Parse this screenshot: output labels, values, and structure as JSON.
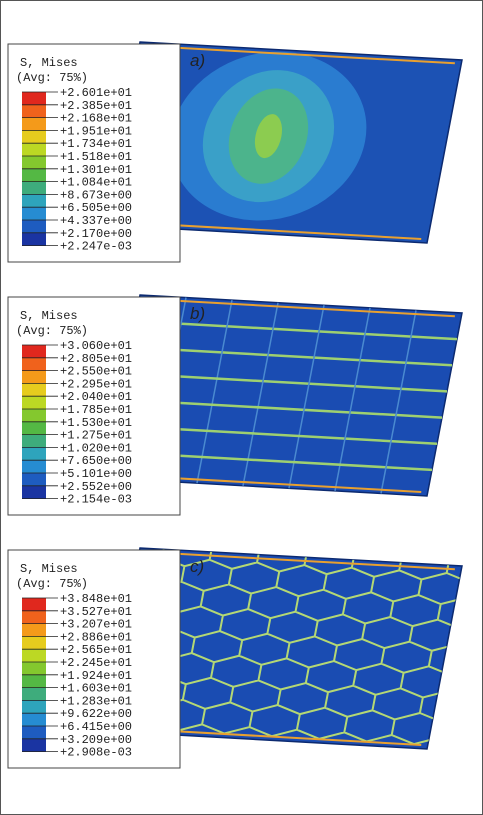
{
  "panels": [
    {
      "label": "a)",
      "legend": {
        "title": "S, Mises",
        "subtitle": "(Avg: 75%)",
        "values": [
          "+2.601e+01",
          "+2.385e+01",
          "+2.168e+01",
          "+1.951e+01",
          "+1.734e+01",
          "+1.518e+01",
          "+1.301e+01",
          "+1.084e+01",
          "+8.673e+00",
          "+6.505e+00",
          "+4.337e+00",
          "+2.170e+00",
          "+2.247e-03"
        ]
      }
    },
    {
      "label": "b)",
      "legend": {
        "title": "S, Mises",
        "subtitle": "(Avg: 75%)",
        "values": [
          "+3.060e+01",
          "+2.805e+01",
          "+2.550e+01",
          "+2.295e+01",
          "+2.040e+01",
          "+1.785e+01",
          "+1.530e+01",
          "+1.275e+01",
          "+1.020e+01",
          "+7.650e+00",
          "+5.101e+00",
          "+2.552e+00",
          "+2.154e-03"
        ]
      }
    },
    {
      "label": "c)",
      "legend": {
        "title": "S, Mises",
        "subtitle": "(Avg: 75%)",
        "values": [
          "+3.848e+01",
          "+3.527e+01",
          "+3.207e+01",
          "+2.886e+01",
          "+2.565e+01",
          "+2.245e+01",
          "+1.924e+01",
          "+1.603e+01",
          "+1.283e+01",
          "+9.622e+00",
          "+6.415e+00",
          "+3.209e+00",
          "+2.908e-03"
        ]
      }
    }
  ]
}
